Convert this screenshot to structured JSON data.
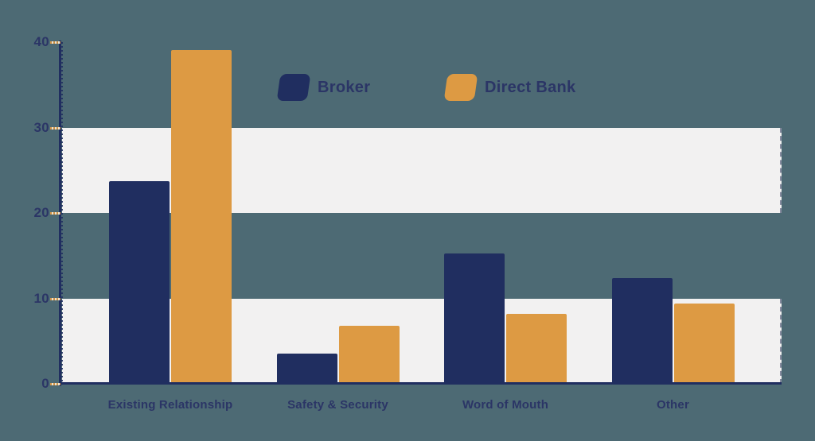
{
  "background_color": "#4d6a74",
  "plot": {
    "band_color": "#f2f1f1",
    "axis_color": "#202e60",
    "tick_color": "#cf9346",
    "tick_gap_color": "#efe3cf",
    "label_color": "#2b3566"
  },
  "chart_data": {
    "type": "bar",
    "title": "",
    "categories": [
      "Existing Relationship",
      "Safety & Security",
      "Word of Mouth",
      "Other"
    ],
    "series": [
      {
        "name": "Broker",
        "color": "#202e60",
        "values": [
          23.7,
          3.5,
          15.3,
          12.4
        ]
      },
      {
        "name": "Direct Bank",
        "color": "#dd9a43",
        "values": [
          39.1,
          6.8,
          8.2,
          9.4
        ]
      }
    ],
    "ylim": [
      0,
      40
    ],
    "yticks": [
      0,
      10,
      20,
      30,
      40
    ],
    "background_bands": [
      [
        0,
        10
      ],
      [
        20,
        30
      ]
    ],
    "legend_position": "top-center",
    "grid": false
  }
}
